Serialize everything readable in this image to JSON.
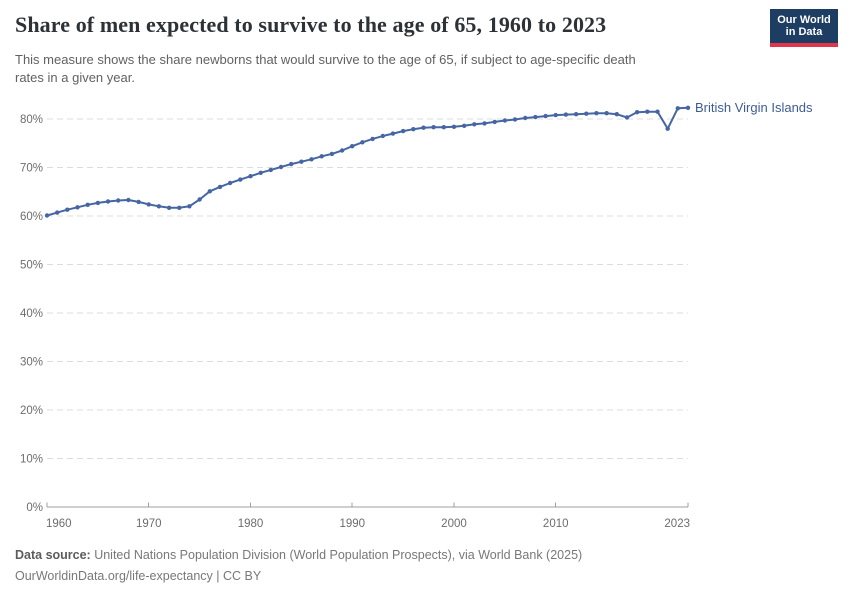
{
  "header": {
    "title": "Share of men expected to survive to the age of 65, 1960 to 2023",
    "subtitle_lines": [
      "This measure shows the share newborns that would survive to the age of 65, if subject to age-specific death",
      "rates in a given year."
    ],
    "logo": {
      "line1": "Our World",
      "line2": "in Data"
    }
  },
  "footer": {
    "source_label": "Data source:",
    "source_text": " United Nations Population Division (World Population Prospects), via World Bank (2025)",
    "link_line": "OurWorldinData.org/life-expectancy | CC BY"
  },
  "colors": {
    "line": "#4566a3",
    "series_label": "#3d5c96",
    "grid": "#dcdcdc",
    "axis": "#9f9f9f",
    "tick_label": "#6d6d6d",
    "logo_bg": "#1d3d63",
    "logo_accent": "#e0354b"
  },
  "chart_data": {
    "type": "line",
    "title": "Share of men expected to survive to the age of 65, 1960 to 2023",
    "xlabel": "",
    "ylabel": "",
    "grid": "horizontal-dashed",
    "legend_position": "end-of-line-label",
    "xlim": [
      1960,
      2023
    ],
    "ylim": [
      0,
      80
    ],
    "x_ticks": [
      1960,
      1970,
      1980,
      1990,
      2000,
      2010,
      2023
    ],
    "y_ticks": [
      0,
      10,
      20,
      30,
      40,
      50,
      60,
      70,
      80
    ],
    "y_tick_suffix": "%",
    "series": [
      {
        "name": "British Virgin Islands",
        "color": "#4566a3",
        "x": [
          1960,
          1961,
          1962,
          1963,
          1964,
          1965,
          1966,
          1967,
          1968,
          1969,
          1970,
          1971,
          1972,
          1973,
          1974,
          1975,
          1976,
          1977,
          1978,
          1979,
          1980,
          1981,
          1982,
          1983,
          1984,
          1985,
          1986,
          1987,
          1988,
          1989,
          1990,
          1991,
          1992,
          1993,
          1994,
          1995,
          1996,
          1997,
          1998,
          1999,
          2000,
          2001,
          2002,
          2003,
          2004,
          2005,
          2006,
          2007,
          2008,
          2009,
          2010,
          2011,
          2012,
          2013,
          2014,
          2015,
          2016,
          2017,
          2018,
          2019,
          2020,
          2021,
          2022,
          2023
        ],
        "values": [
          60.1,
          60.7,
          61.3,
          61.8,
          62.3,
          62.7,
          63.0,
          63.2,
          63.3,
          62.9,
          62.4,
          62.0,
          61.7,
          61.7,
          62.0,
          63.4,
          65.1,
          66.0,
          66.8,
          67.5,
          68.2,
          68.9,
          69.5,
          70.1,
          70.7,
          71.2,
          71.7,
          72.3,
          72.8,
          73.5,
          74.4,
          75.2,
          75.9,
          76.5,
          77.0,
          77.5,
          77.9,
          78.2,
          78.3,
          78.3,
          78.4,
          78.6,
          78.9,
          79.1,
          79.4,
          79.7,
          79.9,
          80.2,
          80.4,
          80.6,
          80.8,
          80.9,
          81.0,
          81.1,
          81.2,
          81.2,
          81.0,
          80.3,
          81.4,
          81.5,
          81.5,
          78.0,
          82.2,
          82.3
        ]
      }
    ]
  }
}
